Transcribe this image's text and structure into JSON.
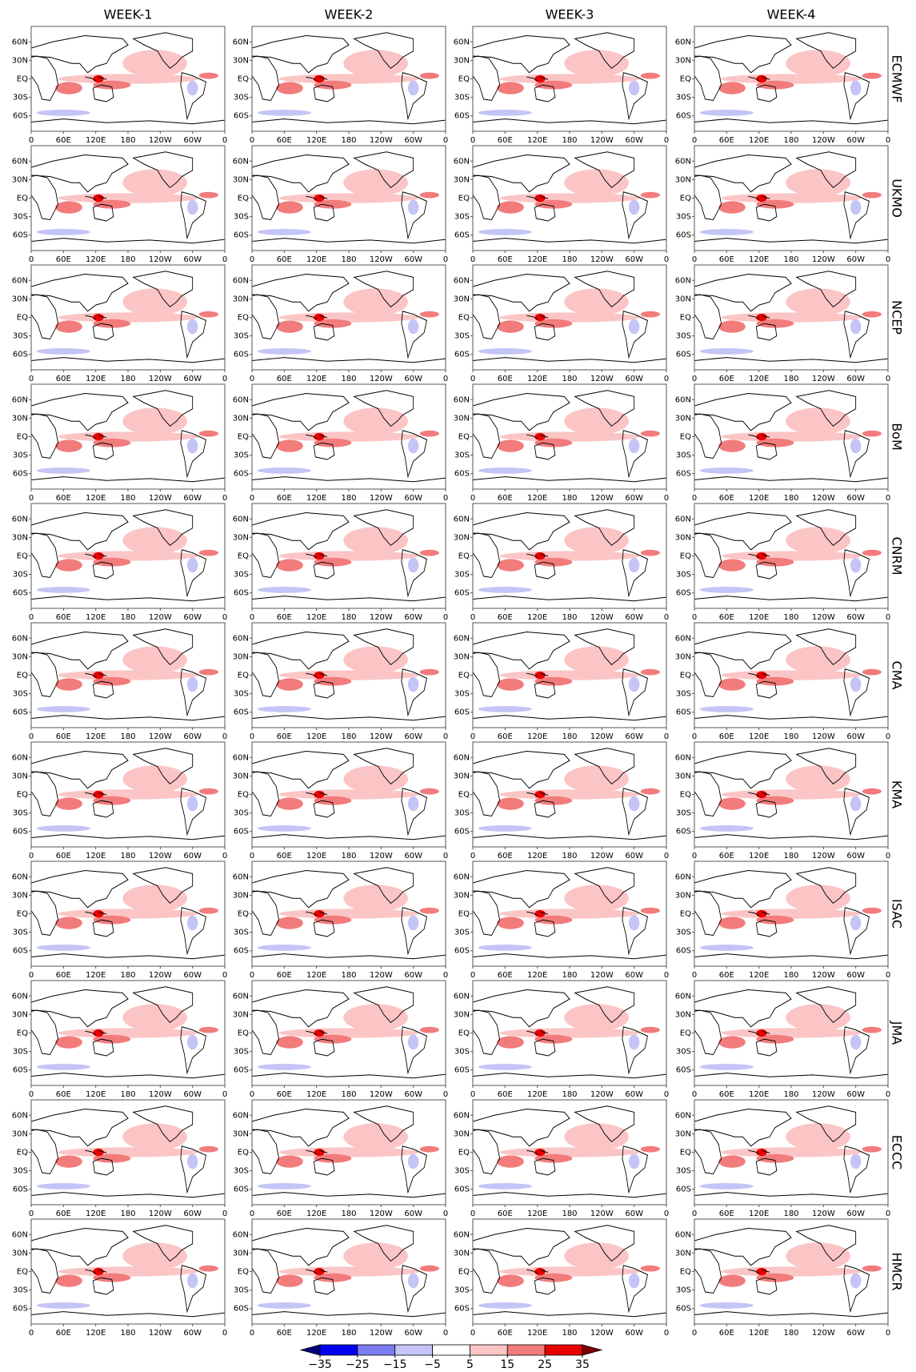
{
  "columns": [
    "WEEK-1",
    "WEEK-2",
    "WEEK-3",
    "WEEK-4"
  ],
  "rows": [
    "ECMWF",
    "UKMO",
    "NCEP",
    "BoM",
    "CNRM",
    "CMA",
    "KMA",
    "ISAC",
    "JMA",
    "ECCC",
    "HMCR"
  ],
  "lat_labels": [
    "60N",
    "30N",
    "EQ",
    "30S",
    "60S"
  ],
  "lon_labels": [
    "0",
    "60E",
    "120E",
    "180",
    "120W",
    "60W",
    "0"
  ],
  "colorbar": {
    "ticks": [
      {
        "value": -35,
        "label": "−35"
      },
      {
        "value": -25,
        "label": "−25"
      },
      {
        "value": -15,
        "label": "−15"
      },
      {
        "value": -5,
        "label": "−5"
      },
      5,
      15,
      25,
      35
    ],
    "colors": [
      "#00007a",
      "#0000f0",
      "#7b7bf2",
      "#c4c4f7",
      "#ffffff",
      "#fbc5c5",
      "#f27b7b",
      "#e80000",
      "#7a0000"
    ]
  }
}
